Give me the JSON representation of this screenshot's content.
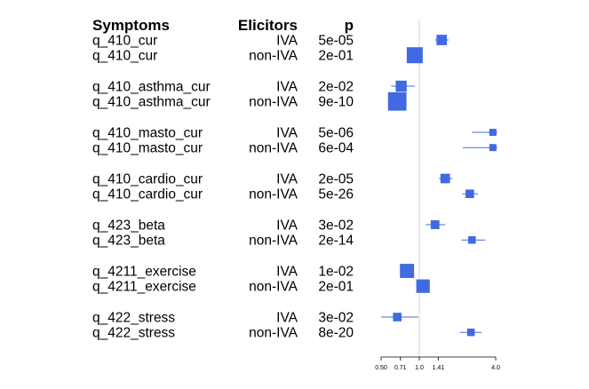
{
  "chart_data": {
    "type": "forest",
    "columns": [
      "Symptoms",
      "Elicitors",
      "p"
    ],
    "xscale": "log",
    "xticks": [
      "0.50",
      "0.71",
      "1.0",
      "1.41",
      "4.0"
    ],
    "xtick_values": [
      0.5,
      0.71,
      1.0,
      1.41,
      4.0
    ],
    "xlim": [
      0.5,
      4.0
    ],
    "reference_line": 1.0,
    "point_color": "#4169E1",
    "rows": [
      {
        "symptom": "q_410_cur",
        "elicitor": "IVA",
        "p": "5e-05",
        "estimate": 1.5,
        "lower": 1.33,
        "upper": 1.7,
        "weight": 0.55
      },
      {
        "symptom": "q_410_cur",
        "elicitor": "non-IVA",
        "p": "2e-01",
        "estimate": 0.92,
        "lower": 0.86,
        "upper": 1.0,
        "weight": 1.0
      },
      {
        "symptom": "q_410_asthma_cur",
        "elicitor": "IVA",
        "p": "2e-02",
        "estimate": 0.72,
        "lower": 0.6,
        "upper": 0.92,
        "weight": 0.6
      },
      {
        "symptom": "q_410_asthma_cur",
        "elicitor": "non-IVA",
        "p": "9e-10",
        "estimate": 0.67,
        "lower": 0.6,
        "upper": 0.75,
        "weight": 1.2
      },
      {
        "symptom": "q_410_masto_cur",
        "elicitor": "IVA",
        "p": "5e-06",
        "estimate": 3.8,
        "lower": 2.6,
        "upper": 4.0,
        "weight": 0.28,
        "truncated_upper": true
      },
      {
        "symptom": "q_410_masto_cur",
        "elicitor": "non-IVA",
        "p": "6e-04",
        "estimate": 3.8,
        "lower": 2.2,
        "upper": 4.0,
        "weight": 0.28,
        "truncated_upper": true
      },
      {
        "symptom": "q_410_cardio_cur",
        "elicitor": "IVA",
        "p": "2e-05",
        "estimate": 1.6,
        "lower": 1.43,
        "upper": 1.82,
        "weight": 0.48
      },
      {
        "symptom": "q_410_cardio_cur",
        "elicitor": "non-IVA",
        "p": "5e-26",
        "estimate": 2.5,
        "lower": 2.18,
        "upper": 2.9,
        "weight": 0.4
      },
      {
        "symptom": "q_423_beta",
        "elicitor": "IVA",
        "p": "3e-02",
        "estimate": 1.33,
        "lower": 1.12,
        "upper": 1.6,
        "weight": 0.42
      },
      {
        "symptom": "q_423_beta",
        "elicitor": "non-IVA",
        "p": "2e-14",
        "estimate": 2.6,
        "lower": 2.15,
        "upper": 3.3,
        "weight": 0.32
      },
      {
        "symptom": "q_4211_exercise",
        "elicitor": "IVA",
        "p": "1e-02",
        "estimate": 0.8,
        "lower": 0.7,
        "upper": 0.9,
        "weight": 0.85
      },
      {
        "symptom": "q_4211_exercise",
        "elicitor": "non-IVA",
        "p": "2e-01",
        "estimate": 1.07,
        "lower": 0.98,
        "upper": 1.17,
        "weight": 0.8
      },
      {
        "symptom": "q_422_stress",
        "elicitor": "IVA",
        "p": "3e-02",
        "estimate": 0.67,
        "lower": 0.46,
        "upper": 0.98,
        "weight": 0.4
      },
      {
        "symptom": "q_422_stress",
        "elicitor": "non-IVA",
        "p": "8e-20",
        "estimate": 2.55,
        "lower": 2.1,
        "upper": 3.1,
        "weight": 0.32
      }
    ]
  }
}
